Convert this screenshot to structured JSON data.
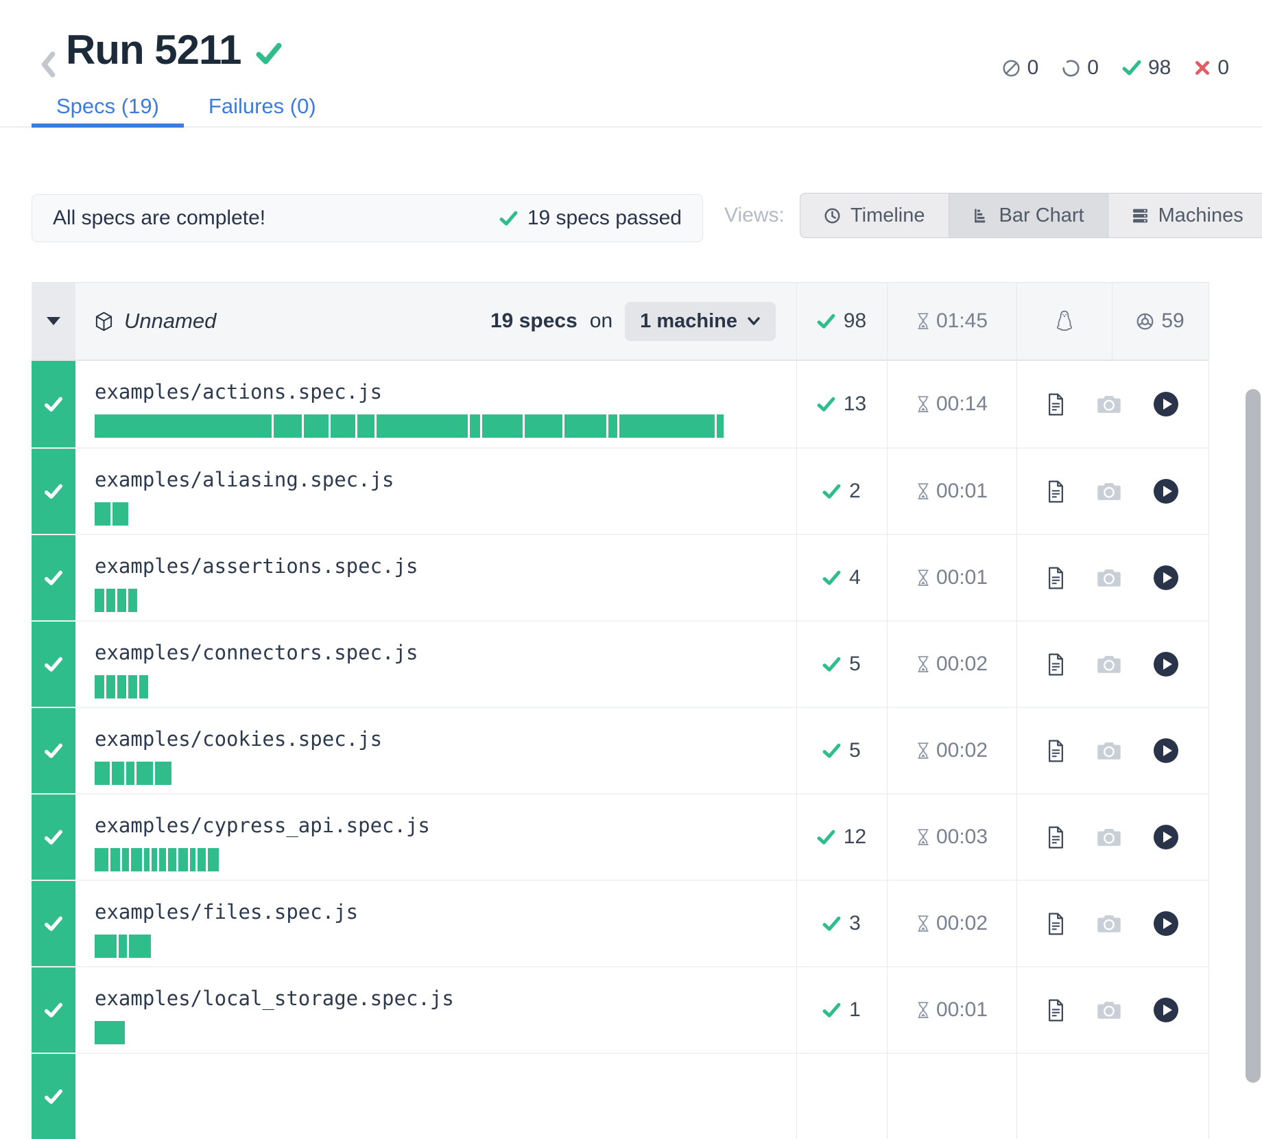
{
  "colors": {
    "pass_green": "#2fbd8c",
    "fail_red": "#e45b65",
    "link_blue": "#3a7ce0"
  },
  "header": {
    "title": "Run 5211",
    "counters": [
      {
        "id": "skipped",
        "icon": "circle-slash-icon",
        "value": "0"
      },
      {
        "id": "pending",
        "icon": "circle-notch-icon",
        "value": "0"
      },
      {
        "id": "passed",
        "icon": "check-icon",
        "value": "98"
      },
      {
        "id": "failed",
        "icon": "x-icon",
        "value": "0"
      }
    ],
    "tabs": [
      {
        "label": "Specs (19)",
        "active": true
      },
      {
        "label": "Failures (0)",
        "active": false
      }
    ]
  },
  "toolbar": {
    "message": "All specs are complete!",
    "passed_summary": "19 specs passed",
    "views_label": "Views:",
    "views": [
      {
        "label": "Timeline",
        "icon": "clock-icon",
        "active": false
      },
      {
        "label": "Bar Chart",
        "icon": "bar-chart-icon",
        "active": true
      },
      {
        "label": "Machines",
        "icon": "machines-icon",
        "active": false
      }
    ]
  },
  "group": {
    "name": "Unnamed",
    "specs_bold": "19 specs",
    "specs_rest": "on",
    "machine_button": "1 machine",
    "passed": "98",
    "duration": "01:45",
    "os": "linux",
    "browser_version": "59"
  },
  "rows": [
    {
      "name": "examples/actions.spec.js",
      "passed": "13",
      "duration": "00:14",
      "segments": [
        258,
        41,
        36,
        36,
        25,
        133,
        15,
        59,
        55,
        61,
        13,
        139,
        10
      ]
    },
    {
      "name": "examples/aliasing.spec.js",
      "passed": "2",
      "duration": "00:01",
      "segments": [
        23,
        23
      ]
    },
    {
      "name": "examples/assertions.spec.js",
      "passed": "4",
      "duration": "00:01",
      "segments": [
        14,
        13,
        13,
        13
      ]
    },
    {
      "name": "examples/connectors.spec.js",
      "passed": "5",
      "duration": "00:02",
      "segments": [
        14,
        13,
        13,
        13,
        13
      ]
    },
    {
      "name": "examples/cookies.spec.js",
      "passed": "5",
      "duration": "00:02",
      "segments": [
        22,
        18,
        12,
        24,
        24
      ]
    },
    {
      "name": "examples/cypress_api.spec.js",
      "passed": "12",
      "duration": "00:03",
      "segments": [
        20,
        14,
        10,
        16,
        8,
        8,
        10,
        12,
        14,
        8,
        12,
        16
      ]
    },
    {
      "name": "examples/files.spec.js",
      "passed": "3",
      "duration": "00:02",
      "segments": [
        32,
        12,
        32
      ]
    },
    {
      "name": "examples/local_storage.spec.js",
      "passed": "1",
      "duration": "00:01",
      "segments": [
        44
      ]
    },
    {
      "name": "",
      "passed": "",
      "duration": "",
      "segments": [],
      "partial": true
    }
  ]
}
